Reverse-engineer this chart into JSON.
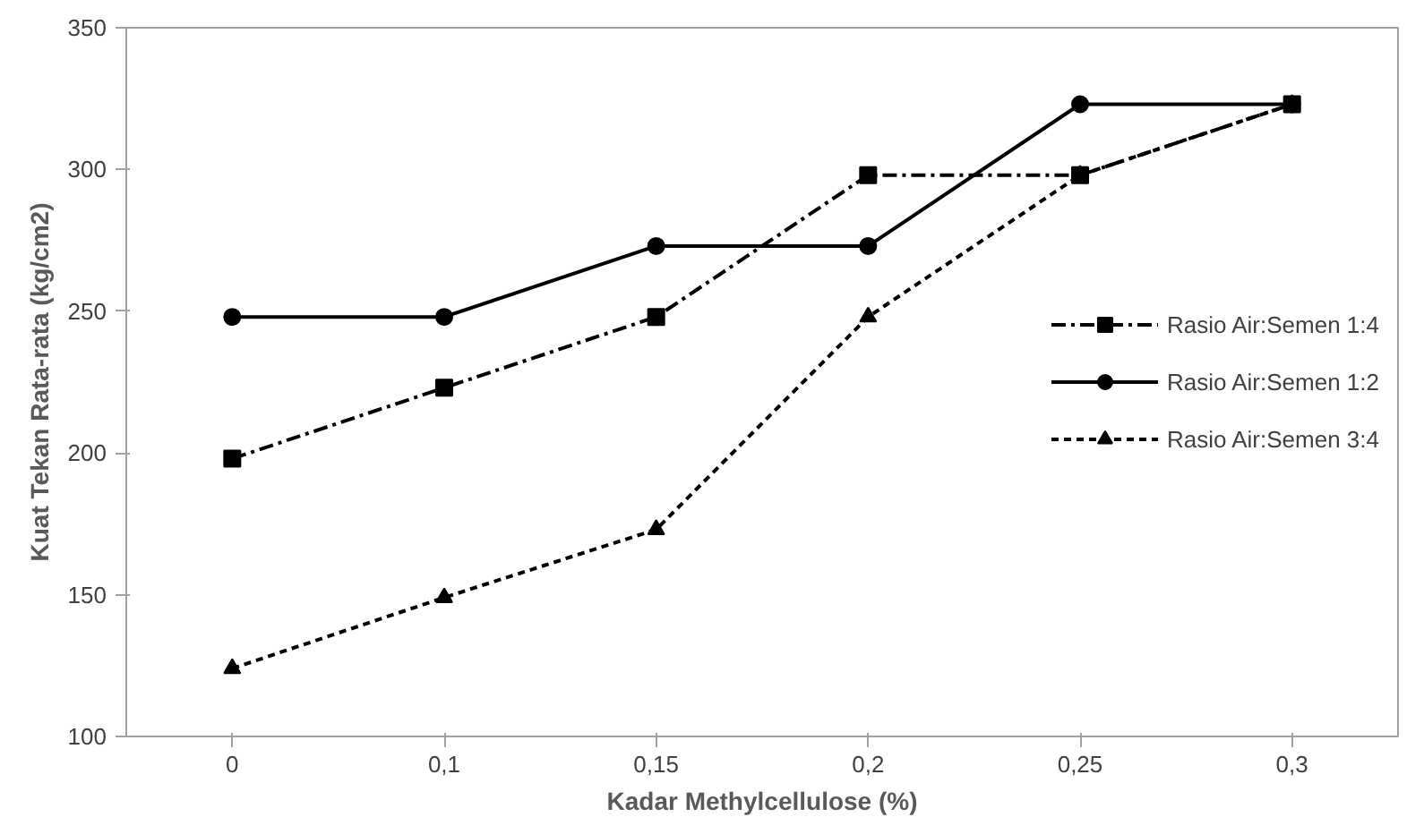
{
  "chart_data": {
    "type": "line",
    "xlabel": "Kadar Methylcellulose (%)",
    "ylabel": "Kuat Tekan Rata-rata (kg/cm2)",
    "categories": [
      "0",
      "0,1",
      "0,15",
      "0,2",
      "0,25",
      "0,3"
    ],
    "series": [
      {
        "name": "Rasio Air:Semen 1:4",
        "color": "#000000",
        "marker": "square",
        "line_style": "dashdot",
        "values": [
          198,
          223,
          248,
          298,
          298,
          323
        ]
      },
      {
        "name": "Rasio Air:Semen 1:2",
        "color": "#000000",
        "marker": "circle",
        "line_style": "solid",
        "values": [
          248,
          248,
          273,
          273,
          323,
          323
        ]
      },
      {
        "name": "Rasio Air:Semen 3:4",
        "color": "#000000",
        "marker": "triangle",
        "line_style": "dashed",
        "values": [
          124,
          149,
          173,
          248,
          298,
          323
        ]
      }
    ],
    "ylim": [
      100,
      350
    ],
    "yticks": [
      100,
      150,
      200,
      250,
      300,
      350
    ],
    "grid": false,
    "legend": "right"
  }
}
